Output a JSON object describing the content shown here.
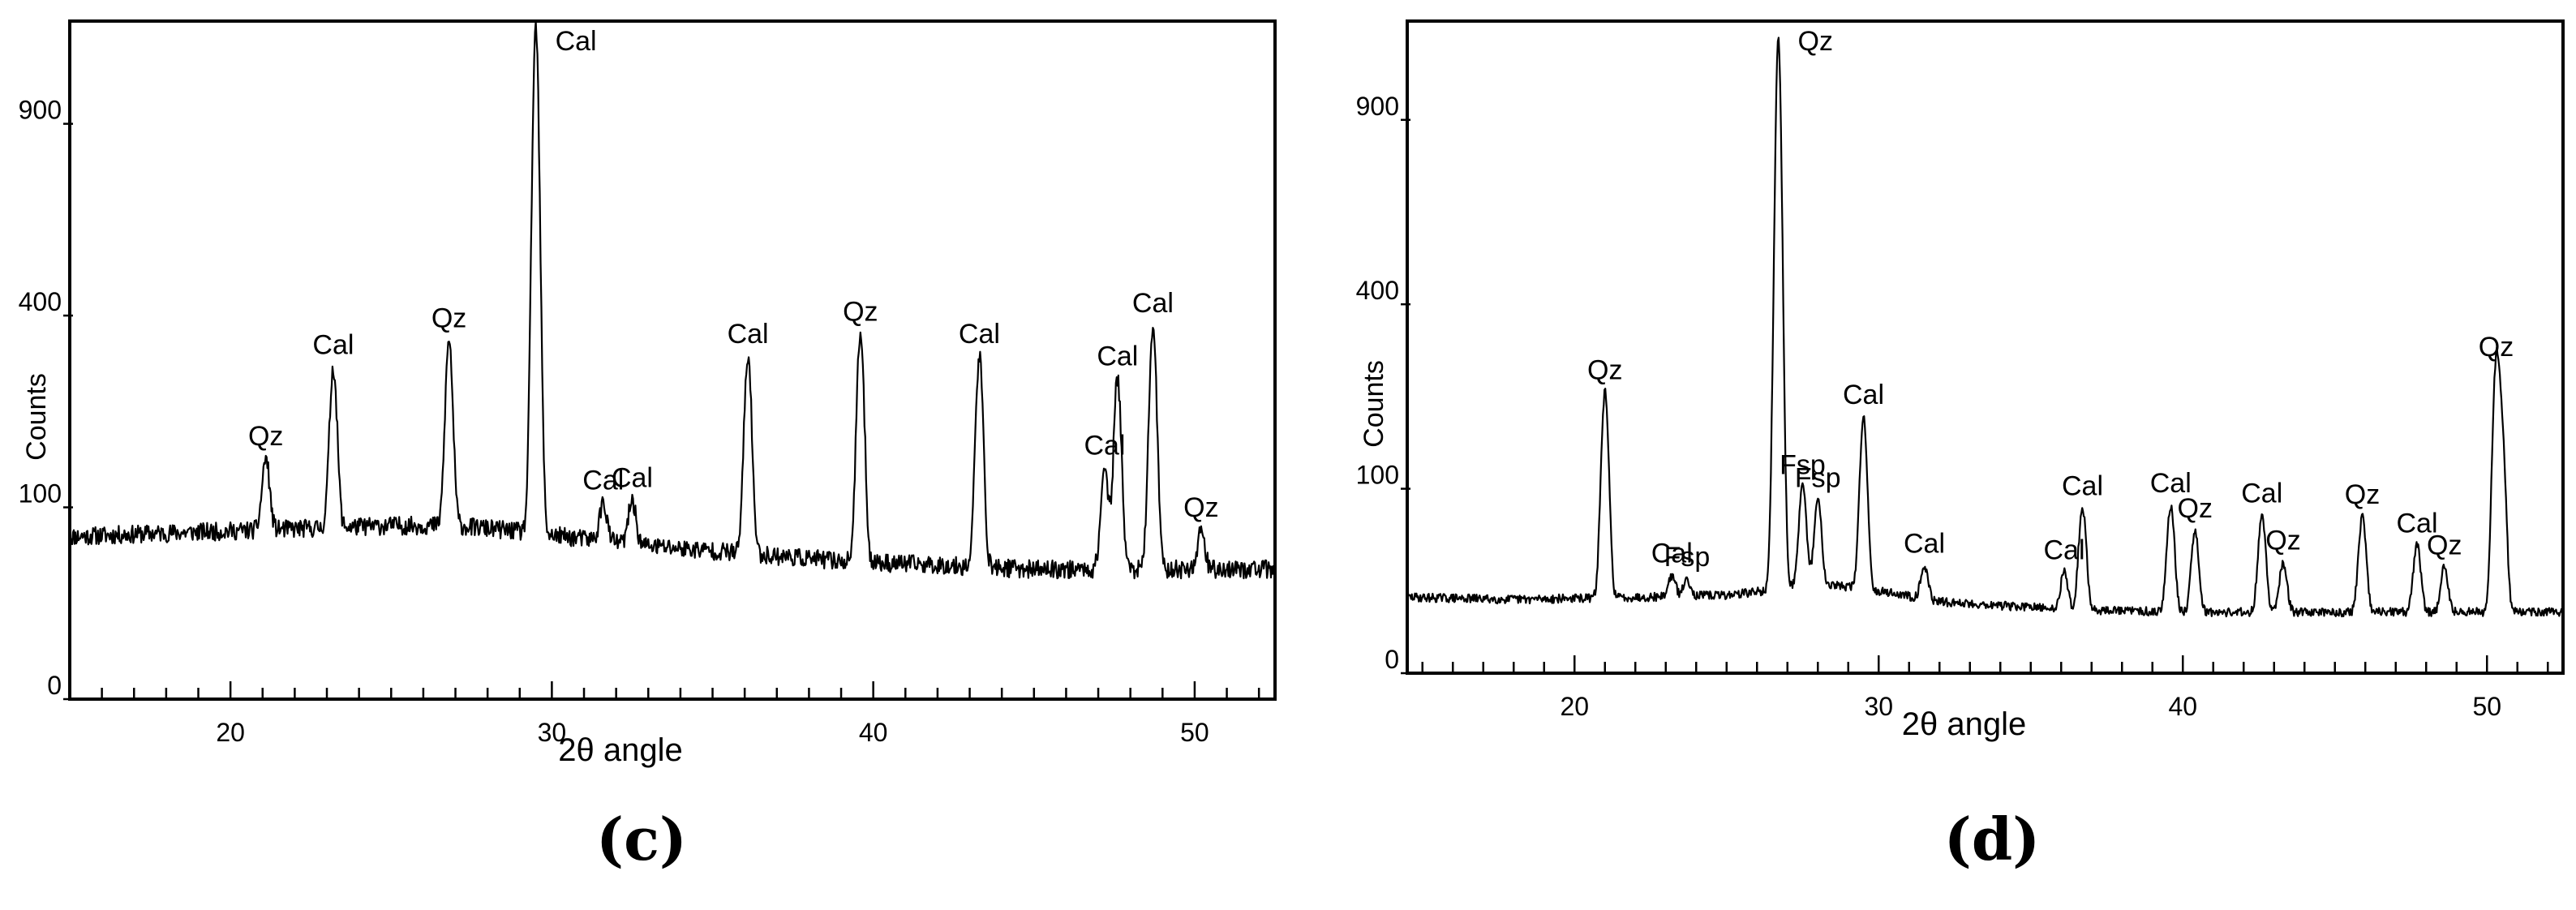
{
  "chart_data": [
    {
      "type": "line",
      "panel_label": "(c)",
      "xlabel": "2θ angle",
      "ylabel": "Counts",
      "xlim": [
        15,
        52.5
      ],
      "y_ticks": [
        0,
        100,
        400,
        900
      ],
      "x_ticks": [
        20,
        30,
        40,
        50
      ],
      "scale": "sqrt",
      "grid": false,
      "baseline": {
        "x": [
          15,
          17,
          19,
          21,
          23,
          25,
          27,
          28.5,
          31,
          33,
          35,
          37,
          39,
          41,
          43,
          45,
          47,
          49,
          51,
          52.5
        ],
        "y": [
          72,
          74,
          76,
          78,
          80,
          82,
          82,
          78,
          70,
          64,
          60,
          56,
          52,
          50,
          48,
          46,
          46,
          46,
          46,
          46
        ]
      },
      "noise": 6,
      "peaks": [
        {
          "x": 21.1,
          "y": 158,
          "label": "Qz"
        },
        {
          "x": 23.2,
          "y": 300,
          "label": "Cal"
        },
        {
          "x": 26.8,
          "y": 350,
          "label": "Qz"
        },
        {
          "x": 29.5,
          "y": 1225,
          "label": "Cal"
        },
        {
          "x": 31.6,
          "y": 105,
          "label": "Cal"
        },
        {
          "x": 32.5,
          "y": 108,
          "label": "Cal"
        },
        {
          "x": 36.1,
          "y": 320,
          "label": "Cal"
        },
        {
          "x": 39.6,
          "y": 363,
          "label": "Qz"
        },
        {
          "x": 43.3,
          "y": 320,
          "label": "Cal"
        },
        {
          "x": 47.2,
          "y": 146,
          "label": "Cal"
        },
        {
          "x": 47.6,
          "y": 280,
          "label": "Cal"
        },
        {
          "x": 48.7,
          "y": 380,
          "label": "Cal"
        },
        {
          "x": 50.2,
          "y": 78,
          "label": "Qz"
        }
      ]
    },
    {
      "type": "line",
      "panel_label": "(d)",
      "xlabel": "2θ angle",
      "ylabel": "Counts",
      "xlim": [
        14.5,
        52.5
      ],
      "y_ticks": [
        0,
        100,
        400,
        900
      ],
      "x_ticks": [
        20,
        30,
        40,
        50
      ],
      "scale": "sqrt",
      "grid": false,
      "baseline": {
        "x": [
          14.5,
          18,
          22,
          25,
          26.3,
          27,
          28,
          30,
          32,
          36,
          40,
          44,
          48,
          52.5
        ],
        "y": [
          17,
          16,
          17,
          18,
          20,
          22,
          24,
          20,
          15,
          12,
          11,
          11,
          11,
          11
        ]
      },
      "noise": 3,
      "peaks": [
        {
          "x": 21.0,
          "y": 232,
          "label": "Qz"
        },
        {
          "x": 23.2,
          "y": 28,
          "label": "Cal"
        },
        {
          "x": 23.7,
          "y": 26,
          "label": "Fsp"
        },
        {
          "x": 26.7,
          "y": 1180,
          "label": "Qz"
        },
        {
          "x": 27.5,
          "y": 102,
          "label": "Fsp"
        },
        {
          "x": 28.0,
          "y": 88,
          "label": "Fsp"
        },
        {
          "x": 29.5,
          "y": 193,
          "label": "Cal"
        },
        {
          "x": 31.5,
          "y": 34,
          "label": "Cal"
        },
        {
          "x": 36.1,
          "y": 30,
          "label": "Cal"
        },
        {
          "x": 36.7,
          "y": 80,
          "label": "Cal"
        },
        {
          "x": 39.6,
          "y": 83,
          "label": "Cal"
        },
        {
          "x": 40.4,
          "y": 60,
          "label": "Qz"
        },
        {
          "x": 42.6,
          "y": 73,
          "label": "Cal"
        },
        {
          "x": 43.3,
          "y": 36,
          "label": "Qz"
        },
        {
          "x": 45.9,
          "y": 72,
          "label": "Qz"
        },
        {
          "x": 47.7,
          "y": 48,
          "label": "Cal"
        },
        {
          "x": 48.6,
          "y": 33,
          "label": "Qz"
        },
        {
          "x": 50.3,
          "y": 272,
          "label": "Qz"
        },
        {
          "x": 50.5,
          "y": 150,
          "label": null
        }
      ]
    }
  ]
}
